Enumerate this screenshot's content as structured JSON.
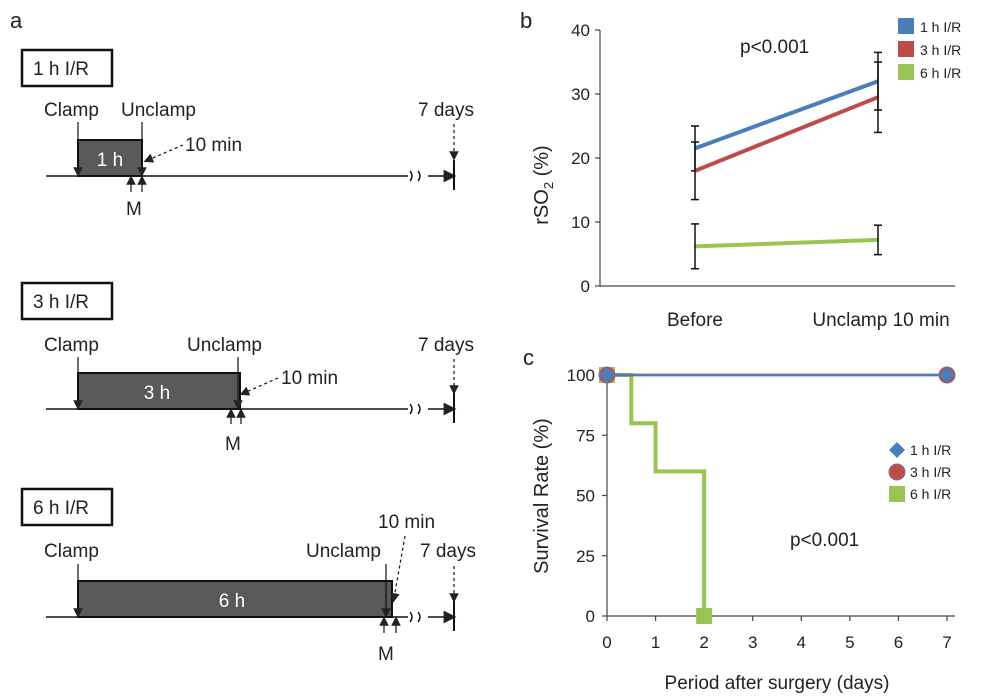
{
  "panels": {
    "a": "a",
    "b": "b",
    "c": "c"
  },
  "timeline": {
    "common": {
      "clamp": "Clamp",
      "unclamp": "Unclamp",
      "days": "7 days",
      "min": "10 min",
      "m": "M"
    },
    "rows": [
      {
        "title": "1 h I/R",
        "duration": "1 h"
      },
      {
        "title": "3 h I/R",
        "duration": "3 h"
      },
      {
        "title": "6 h I/R",
        "duration": "6 h"
      }
    ]
  },
  "chart_data": [
    {
      "type": "line",
      "categories": [
        "Before",
        "Unclamp 10 min"
      ],
      "ylabel_main": "rSO",
      "ylabel_sub": "2",
      "ylabel_tail": " (%)",
      "ylim": [
        0,
        40
      ],
      "yticks": [
        "0",
        "10",
        "20",
        "30",
        "40"
      ],
      "annotation": "p<0.001",
      "legend_position": "top-right",
      "series": [
        {
          "name": "1 h I/R",
          "color": "#4a7ebb",
          "values": [
            21.5,
            32
          ],
          "err": [
            3.5,
            4.5
          ]
        },
        {
          "name": "3 h I/R",
          "color": "#be4b48",
          "values": [
            18,
            29.5
          ],
          "err": [
            4.5,
            5.5
          ]
        },
        {
          "name": "6 h I/R",
          "color": "#98c454",
          "values": [
            6.2,
            7.2
          ],
          "err": [
            3.5,
            2.3
          ]
        }
      ]
    },
    {
      "type": "line",
      "xlabel": "Period after surgery (days)",
      "ylabel": "Survival Rate (%)",
      "xlim": [
        0,
        7
      ],
      "ylim": [
        0,
        100
      ],
      "xticks": [
        "0",
        "1",
        "2",
        "3",
        "4",
        "5",
        "6",
        "7"
      ],
      "yticks": [
        "0",
        "25",
        "50",
        "75",
        "100"
      ],
      "annotation": "p<0.001",
      "legend_position": "right",
      "series": [
        {
          "name": "1 h I/R",
          "color": "#4a7ebb",
          "marker": "diamond",
          "points": [
            [
              0,
              100
            ],
            [
              7,
              100
            ]
          ]
        },
        {
          "name": "3 h I/R",
          "color": "#be4b48",
          "marker": "circle",
          "points": [
            [
              0,
              100
            ],
            [
              7,
              100
            ]
          ]
        },
        {
          "name": "6 h I/R",
          "color": "#98c454",
          "marker": "square",
          "points": [
            [
              0,
              100
            ],
            [
              0.5,
              100
            ],
            [
              0.5,
              80
            ],
            [
              1,
              80
            ],
            [
              1,
              60
            ],
            [
              2,
              60
            ],
            [
              2,
              0
            ]
          ]
        }
      ]
    }
  ]
}
